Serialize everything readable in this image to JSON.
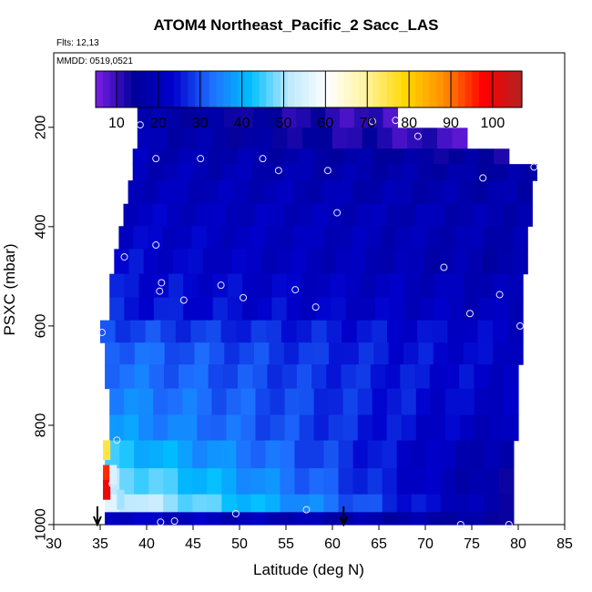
{
  "header": {
    "title": "ATOM4 Northeast_Pacific_2 Sacc_LAS",
    "flights": "Flts: 12,13",
    "dates": "MMDD: 0519,0521"
  },
  "chart_data": {
    "type": "heatmap",
    "title": "ATOM4 Northeast_Pacific_2 Sacc_LAS",
    "xlabel": "Latitude (deg N)",
    "ylabel": "PSXC (mbar)",
    "xlim": [
      30,
      85
    ],
    "ylim": [
      1000,
      50
    ],
    "y_reversed": true,
    "x_ticks": [
      30,
      35,
      40,
      45,
      50,
      55,
      60,
      65,
      70,
      75,
      80,
      85
    ],
    "y_ticks": [
      200,
      400,
      600,
      800,
      1000
    ],
    "grid": false,
    "colorbar": {
      "ticks": [
        10,
        20,
        30,
        40,
        50,
        60,
        70,
        80,
        90,
        100
      ],
      "range": [
        5,
        107
      ],
      "colors": [
        "#7a1fe6",
        "#00009a",
        "#0000cc",
        "#1e6fff",
        "#00bfff",
        "#bfe9ff",
        "#ffffff",
        "#fff39a",
        "#ffd700",
        "#ff8c00",
        "#ff0000",
        "#b22222"
      ]
    },
    "layers": [
      {
        "p": 180,
        "lat0": 39.0,
        "lat1": 67.0,
        "v0": 18,
        "v1": 9
      },
      {
        "p": 222,
        "lat0": 39.0,
        "lat1": 74.5,
        "v0": 19,
        "v1": 9
      },
      {
        "p": 264,
        "lat0": 38.5,
        "lat1": 79.0,
        "v0": 20,
        "v1": 14
      },
      {
        "p": 284,
        "lat0": 38.5,
        "lat1": 82.0,
        "v0": 20,
        "v1": 16
      },
      {
        "p": 330,
        "lat0": 38.0,
        "lat1": 81.5,
        "v0": 21,
        "v1": 17
      },
      {
        "p": 378,
        "lat0": 37.5,
        "lat1": 81.5,
        "v0": 22,
        "v1": 18
      },
      {
        "p": 420,
        "lat0": 37.0,
        "lat1": 81.0,
        "v0": 23,
        "v1": 18
      },
      {
        "p": 470,
        "lat0": 36.5,
        "lat1": 81.0,
        "v0": 24,
        "v1": 17
      },
      {
        "p": 520,
        "lat0": 36.0,
        "lat1": 80.5,
        "v0": 25,
        "v1": 19
      },
      {
        "p": 565,
        "lat0": 36.0,
        "lat1": 80.5,
        "v0": 26,
        "v1": 20
      },
      {
        "p": 612,
        "lat0": 35.0,
        "lat1": 80.5,
        "v0": 30,
        "v1": 22
      },
      {
        "p": 655,
        "lat0": 35.5,
        "lat1": 80.5,
        "v0": 33,
        "v1": 22
      },
      {
        "p": 700,
        "lat0": 35.5,
        "lat1": 80.0,
        "v0": 34,
        "v1": 22
      },
      {
        "p": 752,
        "lat0": 36.0,
        "lat1": 80.0,
        "v0": 36,
        "v1": 21
      },
      {
        "p": 806,
        "lat0": 36.0,
        "lat1": 80.0,
        "v0": 38,
        "v1": 19
      },
      {
        "p": 855,
        "lat0": 35.5,
        "lat1": 79.5,
        "v0": 44,
        "v1": 16
      },
      {
        "p": 918,
        "lat0": 35.5,
        "lat1": 79.5,
        "v0": 50,
        "v1": 14
      },
      {
        "p": 960,
        "lat0": 35.5,
        "lat1": 79.5,
        "v0": 56,
        "v1": 15
      },
      {
        "p": 990,
        "lat0": 35.5,
        "lat1": 79.5,
        "v0": 22,
        "v1": 15
      }
    ],
    "hotspots": [
      {
        "lat": 35.7,
        "p": 850,
        "value": 75
      },
      {
        "lat": 35.7,
        "p": 900,
        "value": 95
      },
      {
        "lat": 35.7,
        "p": 930,
        "value": 100
      },
      {
        "lat": 36.4,
        "p": 900,
        "value": 55
      },
      {
        "lat": 37.2,
        "p": 950,
        "value": 50
      }
    ],
    "samples": [
      {
        "lat": 39.3,
        "p": 195
      },
      {
        "lat": 41.0,
        "p": 263
      },
      {
        "lat": 45.8,
        "p": 263
      },
      {
        "lat": 52.5,
        "p": 263
      },
      {
        "lat": 54.2,
        "p": 287
      },
      {
        "lat": 59.5,
        "p": 287
      },
      {
        "lat": 64.3,
        "p": 188
      },
      {
        "lat": 66.8,
        "p": 186
      },
      {
        "lat": 69.2,
        "p": 218
      },
      {
        "lat": 76.2,
        "p": 302
      },
      {
        "lat": 81.7,
        "p": 280
      },
      {
        "lat": 60.5,
        "p": 372
      },
      {
        "lat": 41.0,
        "p": 437
      },
      {
        "lat": 37.6,
        "p": 461
      },
      {
        "lat": 72.0,
        "p": 482
      },
      {
        "lat": 41.6,
        "p": 513
      },
      {
        "lat": 41.4,
        "p": 530
      },
      {
        "lat": 44.0,
        "p": 548
      },
      {
        "lat": 48.0,
        "p": 518
      },
      {
        "lat": 50.4,
        "p": 543
      },
      {
        "lat": 56.0,
        "p": 527
      },
      {
        "lat": 58.2,
        "p": 562
      },
      {
        "lat": 78.0,
        "p": 537
      },
      {
        "lat": 74.8,
        "p": 575
      },
      {
        "lat": 80.2,
        "p": 600
      },
      {
        "lat": 35.2,
        "p": 613
      },
      {
        "lat": 36.8,
        "p": 830
      },
      {
        "lat": 36.3,
        "p": 918
      },
      {
        "lat": 41.5,
        "p": 995
      },
      {
        "lat": 43.0,
        "p": 993
      },
      {
        "lat": 49.6,
        "p": 978
      },
      {
        "lat": 57.2,
        "p": 970
      },
      {
        "lat": 73.8,
        "p": 1000
      },
      {
        "lat": 79.0,
        "p": 1000
      }
    ],
    "arrows": [
      {
        "lat": 34.7
      },
      {
        "lat": 61.2
      }
    ]
  }
}
